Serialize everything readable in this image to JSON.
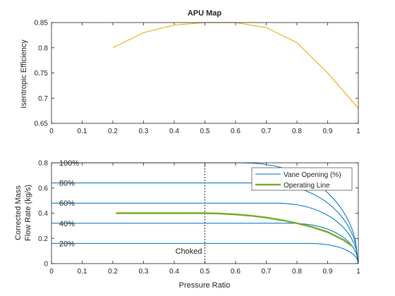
{
  "chart_data": [
    {
      "type": "line",
      "title": "APU Map",
      "xlabel": "",
      "ylabel": "Isentropic Efficiency",
      "xlim": [
        0,
        1
      ],
      "ylim": [
        0.65,
        0.85
      ],
      "xticks": [
        "0",
        "0.1",
        "0.2",
        "0.3",
        "0.4",
        "0.5",
        "0.6",
        "0.7",
        "0.8",
        "0.9",
        "1"
      ],
      "yticks": [
        "0.65",
        "0.7",
        "0.75",
        "0.8",
        "0.85"
      ],
      "grid": false,
      "colors": {
        "line": "#EDB120"
      },
      "series": [
        {
          "x": [
            0.2,
            0.3,
            0.4,
            0.5,
            0.6,
            0.7,
            0.8,
            0.9,
            1.0
          ],
          "y": [
            0.8,
            0.83,
            0.845,
            0.85,
            0.85,
            0.84,
            0.81,
            0.75,
            0.68
          ]
        }
      ]
    },
    {
      "type": "line",
      "title": "",
      "xlabel": "Pressure Ratio",
      "ylabel": "Corrected Mass Flow Rate (kg/s)",
      "ylabel_lines": [
        "Corrected Mass",
        "Flow Rate (kg/s)"
      ],
      "xlim": [
        0,
        1
      ],
      "ylim": [
        0,
        0.8
      ],
      "xticks": [
        "0",
        "0.1",
        "0.2",
        "0.3",
        "0.4",
        "0.5",
        "0.6",
        "0.7",
        "0.8",
        "0.9",
        "1"
      ],
      "yticks": [
        "0",
        "0.2",
        "0.4",
        "0.6",
        "0.8"
      ],
      "grid": false,
      "legend_position": "top-right",
      "legend": [
        "Vane Opening (%)",
        "Operating Line"
      ],
      "colors": {
        "vane": "#0072BD",
        "operating": "#77AC30",
        "choked": "#000000"
      },
      "vane_curves": [
        {
          "label": "100%",
          "max_flow": 0.8,
          "knee_ratio": 0.61
        },
        {
          "label": "80%",
          "max_flow": 0.64,
          "knee_ratio": 0.67
        },
        {
          "label": "60%",
          "max_flow": 0.48,
          "knee_ratio": 0.72
        },
        {
          "label": "40%",
          "max_flow": 0.32,
          "knee_ratio": 0.77
        },
        {
          "label": "20%",
          "max_flow": 0.16,
          "knee_ratio": 0.83
        }
      ],
      "operating_line": {
        "x": [
          0.21,
          0.5,
          0.55,
          0.6,
          0.65,
          0.7,
          0.75,
          0.8,
          0.85,
          0.9,
          0.95,
          0.98
        ],
        "y": [
          0.4,
          0.4,
          0.397,
          0.39,
          0.38,
          0.365,
          0.345,
          0.32,
          0.29,
          0.25,
          0.19,
          0.14
        ]
      },
      "choked_line": {
        "x": 0.5,
        "label": "Choked"
      }
    }
  ]
}
